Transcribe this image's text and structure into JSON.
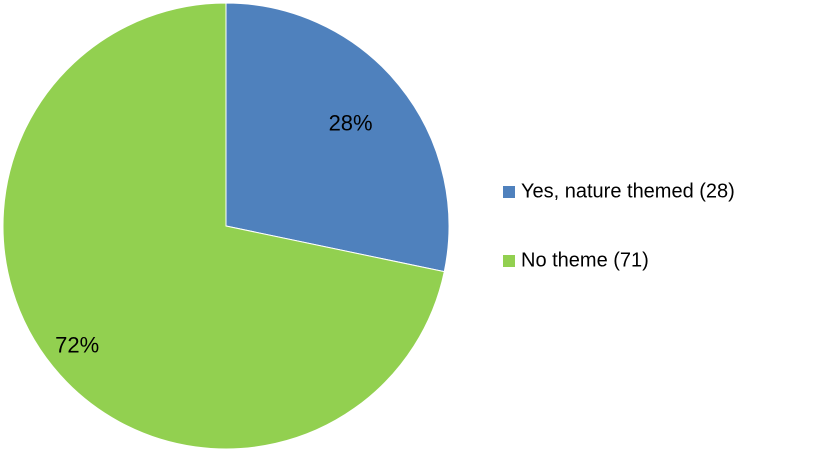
{
  "chart_data": {
    "type": "pie",
    "title": "",
    "categories": [
      "Yes, nature themed (28)",
      "No theme (71)"
    ],
    "values": [
      28,
      71
    ],
    "percent_labels": [
      "28%",
      "72%"
    ],
    "colors": [
      "#4f81bd",
      "#92d050"
    ],
    "start_angle_deg": 0,
    "direction": "clockwise",
    "legend": {
      "position": "right",
      "entries": [
        "Yes, nature themed (28)",
        "No theme (71)"
      ]
    }
  }
}
